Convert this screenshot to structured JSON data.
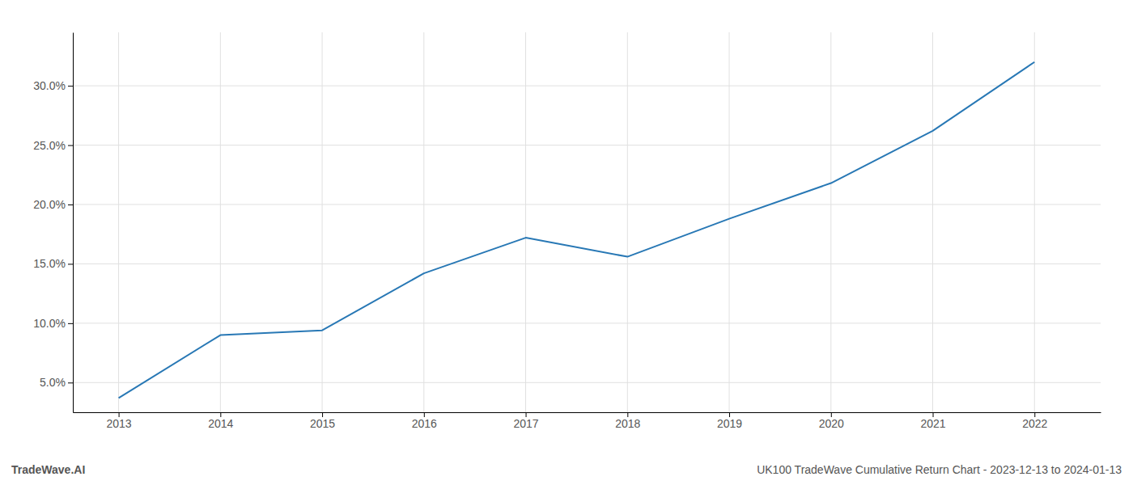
{
  "chart_data": {
    "type": "line",
    "x": [
      2013,
      2014,
      2015,
      2016,
      2017,
      2018,
      2019,
      2020,
      2021,
      2022
    ],
    "values": [
      3.7,
      9.0,
      9.4,
      14.2,
      17.2,
      15.6,
      18.8,
      21.8,
      26.2,
      32.0
    ],
    "color": "#2878b5",
    "xlim": [
      2012.55,
      2022.65
    ],
    "xticks": [
      2013,
      2014,
      2015,
      2016,
      2017,
      2018,
      2019,
      2020,
      2021,
      2022
    ],
    "ylim": [
      2.5,
      34.5
    ],
    "yticks": [
      {
        "value": 5.0,
        "label": "5.0%"
      },
      {
        "value": 10.0,
        "label": "10.0%"
      },
      {
        "value": 15.0,
        "label": "15.0%"
      },
      {
        "value": 20.0,
        "label": "20.0%"
      },
      {
        "value": 25.0,
        "label": "25.0%"
      },
      {
        "value": 30.0,
        "label": "30.0%"
      }
    ],
    "grid": true,
    "annotations": [
      "TradeWave.AI",
      "UK100 TradeWave Cumulative Return Chart - 2023-12-13 to 2024-01-13"
    ]
  }
}
